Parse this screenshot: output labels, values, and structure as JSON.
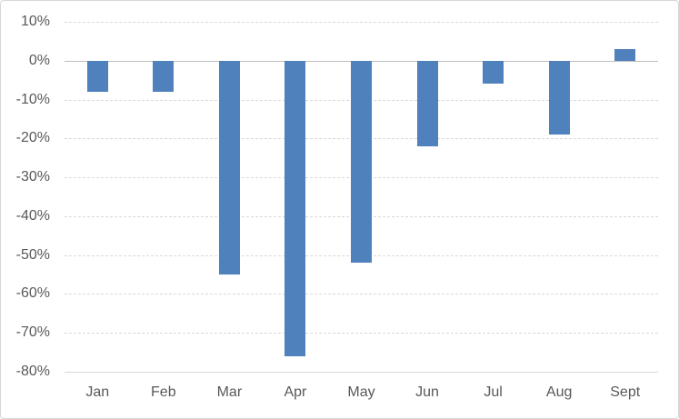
{
  "chart_data": {
    "type": "bar",
    "title": "",
    "xlabel": "",
    "ylabel": "",
    "unit": "%",
    "categories": [
      "Jan",
      "Feb",
      "Mar",
      "Apr",
      "May",
      "Jun",
      "Jul",
      "Aug",
      "Sept"
    ],
    "values": [
      -8,
      -8,
      -55,
      -76,
      -52,
      -22,
      -6,
      -19,
      3
    ],
    "ylim": [
      -80,
      10
    ],
    "ytick_step": 10,
    "ytick_labels": [
      "10%",
      "0%",
      "-10%",
      "-20%",
      "-30%",
      "-40%",
      "-50%",
      "-60%",
      "-70%",
      "-80%"
    ],
    "grid": true,
    "legend": false,
    "colors": {
      "bar": "#4f81bd",
      "axis_text": "#595959",
      "gridline": "#d9d9d9",
      "zero_line": "#bfbfbf",
      "chart_border": "#d7d7d7",
      "background": "#ffffff"
    }
  }
}
